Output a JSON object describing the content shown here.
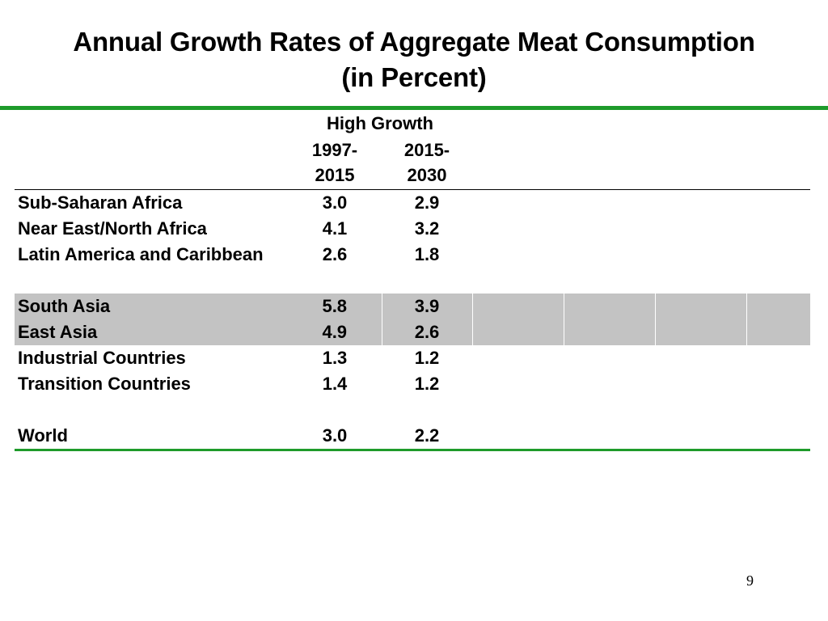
{
  "slide": {
    "title_line1": "Annual Growth Rates of Aggregate Meat Consumption",
    "title_line2": "(in Percent)",
    "page_number": "9",
    "accent_color": "#1e9b2b",
    "shade_color": "#c3c3c3"
  },
  "table": {
    "group_header": "High Growth",
    "columns": [
      {
        "line1": "1997-",
        "line2": "2015"
      },
      {
        "line1": "2015-",
        "line2": "2030"
      }
    ],
    "rows": [
      {
        "region": "Sub-Saharan Africa",
        "v1": "3.0",
        "v2": "2.9"
      },
      {
        "region": "Near East/North Africa",
        "v1": "4.1",
        "v2": "3.2"
      },
      {
        "region": "Latin America and Caribbean",
        "v1": "2.6",
        "v2": "1.8"
      },
      {
        "region": "South Asia",
        "v1": "5.8",
        "v2": "3.9"
      },
      {
        "region": "East Asia",
        "v1": "4.9",
        "v2": "2.6"
      },
      {
        "region": "Industrial Countries",
        "v1": "1.3",
        "v2": "1.2"
      },
      {
        "region": "Transition Countries",
        "v1": "1.4",
        "v2": "1.2"
      },
      {
        "region": "World",
        "v1": "3.0",
        "v2": "2.2"
      }
    ]
  }
}
